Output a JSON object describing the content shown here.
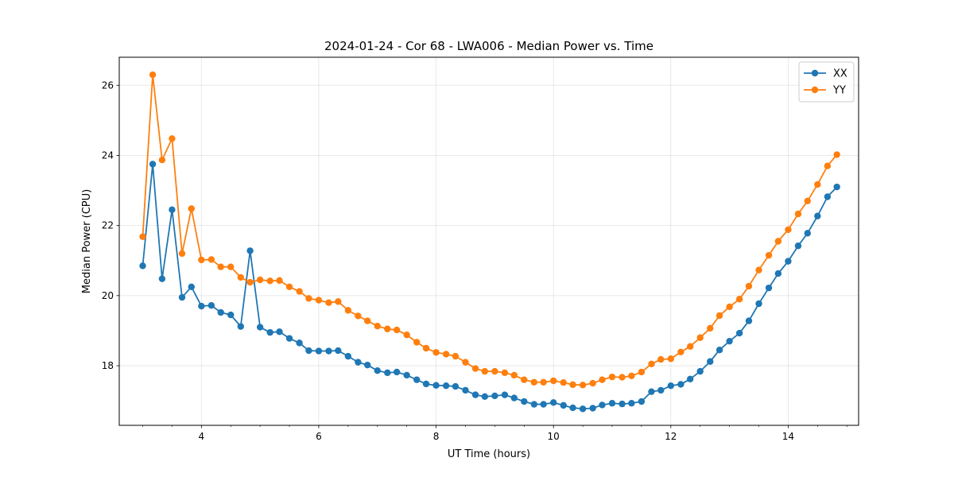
{
  "chart_data": {
    "type": "line",
    "title": "2024-01-24 - Cor 68 - LWA006 - Median Power vs. Time",
    "xlabel": "UT Time (hours)",
    "ylabel": "Median Power (CPU)",
    "xlim": [
      2.6,
      15.2
    ],
    "ylim": [
      16.3,
      26.8
    ],
    "xticks": [
      4,
      6,
      8,
      10,
      12,
      14
    ],
    "yticks": [
      18,
      20,
      22,
      24,
      26
    ],
    "grid": true,
    "legend_position": "top-right",
    "x": [
      3.0,
      3.17,
      3.33,
      3.5,
      3.67,
      3.83,
      4.0,
      4.17,
      4.33,
      4.5,
      4.67,
      4.83,
      5.0,
      5.17,
      5.33,
      5.5,
      5.67,
      5.83,
      6.0,
      6.17,
      6.33,
      6.5,
      6.67,
      6.83,
      7.0,
      7.17,
      7.33,
      7.5,
      7.67,
      7.83,
      8.0,
      8.17,
      8.33,
      8.5,
      8.67,
      8.83,
      9.0,
      9.17,
      9.33,
      9.5,
      9.67,
      9.83,
      10.0,
      10.17,
      10.33,
      10.5,
      10.67,
      10.83,
      11.0,
      11.17,
      11.33,
      11.5,
      11.67,
      11.83,
      12.0,
      12.17,
      12.33,
      12.5,
      12.67,
      12.83,
      13.0,
      13.17,
      13.33,
      13.5,
      13.67,
      13.83,
      14.0,
      14.17,
      14.33,
      14.5,
      14.67,
      14.83
    ],
    "series": [
      {
        "name": "XX",
        "color": "#1f77b4",
        "values": [
          20.85,
          23.75,
          20.48,
          22.45,
          19.95,
          20.25,
          19.7,
          19.72,
          19.52,
          19.45,
          19.12,
          21.28,
          19.1,
          18.95,
          18.97,
          18.78,
          18.65,
          18.43,
          18.42,
          18.42,
          18.43,
          18.27,
          18.1,
          18.02,
          17.86,
          17.8,
          17.82,
          17.73,
          17.6,
          17.48,
          17.44,
          17.43,
          17.41,
          17.3,
          17.17,
          17.12,
          17.14,
          17.17,
          17.08,
          16.98,
          16.9,
          16.9,
          16.95,
          16.87,
          16.8,
          16.77,
          16.79,
          16.88,
          16.93,
          16.91,
          16.93,
          16.98,
          17.26,
          17.3,
          17.43,
          17.47,
          17.62,
          17.84,
          18.12,
          18.45,
          18.7,
          18.93,
          19.28,
          19.77,
          20.22,
          20.63,
          20.98,
          21.42,
          21.78,
          22.27,
          22.82,
          23.1
        ]
      },
      {
        "name": "YY",
        "color": "#ff7f0e",
        "values": [
          21.68,
          26.3,
          23.87,
          24.48,
          21.2,
          22.48,
          21.02,
          21.03,
          20.82,
          20.82,
          20.52,
          20.38,
          20.45,
          20.42,
          20.43,
          20.25,
          20.12,
          19.92,
          19.87,
          19.8,
          19.83,
          19.58,
          19.42,
          19.28,
          19.13,
          19.05,
          19.02,
          18.88,
          18.67,
          18.5,
          18.38,
          18.33,
          18.27,
          18.1,
          17.92,
          17.84,
          17.84,
          17.8,
          17.73,
          17.6,
          17.53,
          17.53,
          17.57,
          17.52,
          17.46,
          17.45,
          17.5,
          17.6,
          17.68,
          17.67,
          17.71,
          17.82,
          18.05,
          18.18,
          18.2,
          18.39,
          18.55,
          18.8,
          19.07,
          19.43,
          19.68,
          19.9,
          20.27,
          20.73,
          21.15,
          21.55,
          21.88,
          22.33,
          22.7,
          23.17,
          23.7,
          24.02
        ]
      }
    ]
  }
}
